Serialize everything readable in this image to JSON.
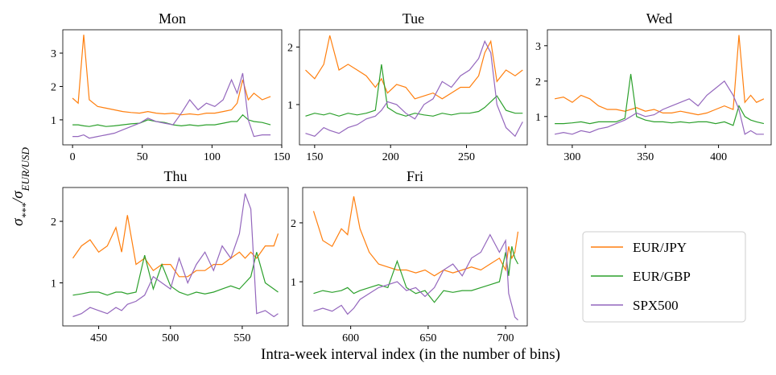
{
  "figure": {
    "xlabel": "Intra-week interval index (in the number of bins)",
    "ylabel": [
      {
        "text": "σ"
      },
      {
        "text": "***",
        "sub": true
      },
      {
        "text": "/σ"
      },
      {
        "text": "EUR/USD",
        "sub": true
      }
    ]
  },
  "chart_data": [
    {
      "type": "line",
      "title": "Mon",
      "xlim": [
        -7,
        150
      ],
      "xticks": [
        0,
        50,
        100,
        150
      ],
      "ylim": [
        0.25,
        3.7
      ],
      "yticks": [
        1,
        2,
        3
      ],
      "x": [
        0,
        4,
        8,
        12,
        18,
        24,
        30,
        36,
        42,
        48,
        54,
        60,
        66,
        72,
        78,
        84,
        90,
        96,
        102,
        108,
        114,
        118,
        122,
        126,
        130,
        136,
        142
      ],
      "series": [
        {
          "name": "EUR/JPY",
          "color": "#ff7f0e",
          "values": [
            1.65,
            1.5,
            3.55,
            1.6,
            1.4,
            1.35,
            1.3,
            1.25,
            1.22,
            1.2,
            1.25,
            1.2,
            1.18,
            1.2,
            1.15,
            1.18,
            1.15,
            1.2,
            1.2,
            1.25,
            1.3,
            1.5,
            2.2,
            1.6,
            1.8,
            1.6,
            1.7
          ]
        },
        {
          "name": "EUR/GBP",
          "color": "#2ca02c",
          "values": [
            0.85,
            0.85,
            0.82,
            0.8,
            0.85,
            0.8,
            0.82,
            0.85,
            0.88,
            0.9,
            1.0,
            0.95,
            0.92,
            0.85,
            0.82,
            0.85,
            0.82,
            0.85,
            0.85,
            0.9,
            0.95,
            0.95,
            1.15,
            1.0,
            0.95,
            0.92,
            0.85
          ]
        },
        {
          "name": "SPX500",
          "color": "#9467bd",
          "values": [
            0.5,
            0.5,
            0.55,
            0.45,
            0.5,
            0.55,
            0.6,
            0.7,
            0.8,
            0.9,
            1.05,
            0.95,
            0.9,
            0.85,
            1.2,
            1.6,
            1.3,
            1.5,
            1.4,
            1.6,
            2.2,
            1.8,
            2.4,
            1.0,
            0.5,
            0.55,
            0.55
          ]
        }
      ]
    },
    {
      "type": "line",
      "title": "Tue",
      "xlim": [
        140,
        290
      ],
      "xticks": [
        150,
        200,
        250
      ],
      "ylim": [
        0.3,
        2.3
      ],
      "yticks": [
        1,
        2
      ],
      "x": [
        144,
        150,
        156,
        160,
        166,
        172,
        178,
        184,
        190,
        194,
        198,
        204,
        210,
        216,
        222,
        228,
        234,
        240,
        246,
        252,
        258,
        262,
        266,
        270,
        276,
        282,
        287
      ],
      "series": [
        {
          "name": "EUR/JPY",
          "color": "#ff7f0e",
          "values": [
            1.6,
            1.45,
            1.7,
            2.2,
            1.6,
            1.7,
            1.6,
            1.5,
            1.3,
            1.45,
            1.2,
            1.35,
            1.3,
            1.1,
            1.15,
            1.2,
            1.1,
            1.2,
            1.3,
            1.3,
            1.5,
            1.9,
            2.1,
            1.4,
            1.6,
            1.5,
            1.6
          ]
        },
        {
          "name": "EUR/GBP",
          "color": "#2ca02c",
          "values": [
            0.8,
            0.85,
            0.82,
            0.85,
            0.8,
            0.85,
            0.82,
            0.85,
            0.9,
            1.7,
            0.95,
            0.85,
            0.8,
            0.85,
            0.82,
            0.8,
            0.85,
            0.82,
            0.85,
            0.85,
            0.88,
            0.95,
            1.05,
            1.15,
            0.9,
            0.85,
            0.85
          ]
        },
        {
          "name": "SPX500",
          "color": "#9467bd",
          "values": [
            0.5,
            0.45,
            0.6,
            0.55,
            0.5,
            0.6,
            0.65,
            0.75,
            0.8,
            0.9,
            1.05,
            1.0,
            0.85,
            0.75,
            1.0,
            1.1,
            1.4,
            1.3,
            1.5,
            1.6,
            1.8,
            2.1,
            1.9,
            1.0,
            0.6,
            0.45,
            0.7
          ]
        }
      ]
    },
    {
      "type": "line",
      "title": "Wed",
      "xlim": [
        283,
        436
      ],
      "xticks": [
        300,
        350,
        400
      ],
      "ylim": [
        0.2,
        3.45
      ],
      "yticks": [
        1,
        2,
        3
      ],
      "x": [
        288,
        294,
        300,
        306,
        312,
        318,
        324,
        330,
        336,
        340,
        344,
        350,
        356,
        362,
        368,
        374,
        380,
        386,
        392,
        398,
        404,
        410,
        414,
        418,
        422,
        426,
        431
      ],
      "series": [
        {
          "name": "EUR/JPY",
          "color": "#ff7f0e",
          "values": [
            1.5,
            1.55,
            1.4,
            1.6,
            1.5,
            1.3,
            1.2,
            1.2,
            1.15,
            1.2,
            1.25,
            1.15,
            1.2,
            1.1,
            1.1,
            1.15,
            1.1,
            1.05,
            1.1,
            1.2,
            1.3,
            1.2,
            3.3,
            1.4,
            1.6,
            1.4,
            1.5
          ]
        },
        {
          "name": "EUR/GBP",
          "color": "#2ca02c",
          "values": [
            0.8,
            0.8,
            0.82,
            0.85,
            0.8,
            0.85,
            0.85,
            0.85,
            0.95,
            2.2,
            1.0,
            0.9,
            0.85,
            0.85,
            0.82,
            0.85,
            0.82,
            0.85,
            0.85,
            0.8,
            0.85,
            0.75,
            1.3,
            1.0,
            0.9,
            0.85,
            0.8
          ]
        },
        {
          "name": "SPX500",
          "color": "#9467bd",
          "values": [
            0.5,
            0.55,
            0.5,
            0.6,
            0.55,
            0.65,
            0.7,
            0.8,
            0.9,
            1.0,
            1.1,
            1.0,
            1.05,
            1.2,
            1.3,
            1.4,
            1.5,
            1.3,
            1.6,
            1.8,
            2.0,
            1.6,
            1.2,
            0.5,
            0.6,
            0.5,
            0.5
          ]
        }
      ]
    },
    {
      "type": "line",
      "title": "Thu",
      "xlim": [
        425,
        582
      ],
      "xticks": [
        450,
        500,
        550
      ],
      "ylim": [
        0.3,
        2.55
      ],
      "yticks": [
        1,
        2
      ],
      "x": [
        432,
        438,
        444,
        450,
        456,
        462,
        466,
        470,
        476,
        482,
        488,
        494,
        500,
        506,
        512,
        518,
        524,
        530,
        536,
        542,
        548,
        552,
        556,
        560,
        566,
        572,
        575
      ],
      "series": [
        {
          "name": "EUR/JPY",
          "color": "#ff7f0e",
          "values": [
            1.4,
            1.6,
            1.7,
            1.5,
            1.6,
            1.9,
            1.5,
            2.1,
            1.3,
            1.4,
            1.2,
            1.3,
            1.3,
            1.1,
            1.1,
            1.2,
            1.2,
            1.3,
            1.3,
            1.4,
            1.5,
            1.4,
            1.5,
            1.4,
            1.6,
            1.6,
            1.8
          ]
        },
        {
          "name": "EUR/GBP",
          "color": "#2ca02c",
          "values": [
            0.8,
            0.82,
            0.85,
            0.85,
            0.8,
            0.85,
            0.85,
            0.82,
            0.85,
            1.45,
            0.9,
            1.3,
            0.95,
            0.85,
            0.8,
            0.85,
            0.82,
            0.85,
            0.9,
            0.95,
            0.9,
            1.0,
            1.1,
            1.5,
            1.0,
            0.9,
            0.85
          ]
        },
        {
          "name": "SPX500",
          "color": "#9467bd",
          "values": [
            0.45,
            0.5,
            0.6,
            0.55,
            0.5,
            0.6,
            0.55,
            0.65,
            0.7,
            0.8,
            1.1,
            1.0,
            0.9,
            1.4,
            1.0,
            1.3,
            1.5,
            1.2,
            1.6,
            1.4,
            1.8,
            2.45,
            2.2,
            0.5,
            0.55,
            0.45,
            0.5
          ]
        }
      ]
    },
    {
      "type": "line",
      "title": "Fri",
      "xlim": [
        569,
        714
      ],
      "xticks": [
        600,
        650,
        700
      ],
      "ylim": [
        0.25,
        2.6
      ],
      "yticks": [
        1,
        2
      ],
      "x": [
        576,
        582,
        588,
        594,
        598,
        602,
        606,
        612,
        618,
        624,
        630,
        636,
        642,
        648,
        654,
        660,
        666,
        672,
        678,
        684,
        690,
        696,
        700,
        702,
        704,
        706,
        708
      ],
      "series": [
        {
          "name": "EUR/JPY",
          "color": "#ff7f0e",
          "values": [
            2.2,
            1.7,
            1.6,
            1.9,
            1.8,
            2.45,
            1.9,
            1.5,
            1.3,
            1.25,
            1.2,
            1.2,
            1.15,
            1.2,
            1.1,
            1.2,
            1.15,
            1.2,
            1.25,
            1.2,
            1.3,
            1.4,
            1.2,
            1.6,
            1.4,
            1.5,
            1.85
          ]
        },
        {
          "name": "EUR/GBP",
          "color": "#2ca02c",
          "values": [
            0.8,
            0.85,
            0.82,
            0.85,
            0.9,
            0.8,
            0.85,
            0.9,
            0.95,
            0.9,
            1.35,
            0.9,
            0.8,
            0.85,
            0.65,
            0.85,
            0.82,
            0.85,
            0.85,
            0.9,
            0.95,
            1.0,
            1.5,
            1.1,
            1.6,
            1.4,
            1.3
          ]
        },
        {
          "name": "SPX500",
          "color": "#9467bd",
          "values": [
            0.5,
            0.55,
            0.5,
            0.6,
            0.45,
            0.55,
            0.7,
            0.8,
            0.9,
            0.95,
            1.0,
            0.85,
            0.9,
            0.75,
            0.9,
            1.2,
            1.3,
            1.1,
            1.4,
            1.5,
            1.8,
            1.5,
            1.7,
            0.8,
            0.6,
            0.4,
            0.35
          ]
        }
      ]
    }
  ]
}
